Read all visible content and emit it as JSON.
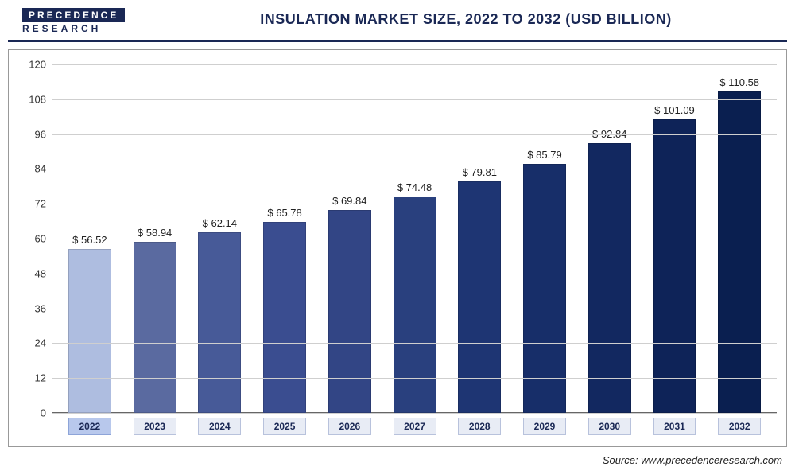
{
  "logo": {
    "top": "PRECEDENCE",
    "bottom": "RESEARCH"
  },
  "title": "INSULATION MARKET SIZE, 2022 TO 2032 (USD BILLION)",
  "source": "Source: www.precedenceresearch.com",
  "chart": {
    "type": "bar",
    "ylim": [
      0,
      120
    ],
    "ytick_step": 12,
    "yticks": [
      0,
      12,
      24,
      36,
      48,
      60,
      72,
      84,
      96,
      108,
      120
    ],
    "grid_color": "#cfcfcf",
    "background_color": "#ffffff",
    "title_fontsize": 18,
    "label_fontsize": 13,
    "value_prefix": "$ ",
    "bar_width": 0.66,
    "categories": [
      "2022",
      "2023",
      "2024",
      "2025",
      "2026",
      "2027",
      "2028",
      "2029",
      "2030",
      "2031",
      "2032"
    ],
    "values": [
      56.52,
      58.94,
      62.14,
      65.78,
      69.84,
      74.48,
      79.81,
      85.79,
      92.84,
      101.09,
      110.58
    ],
    "bar_colors": [
      "#aebde0",
      "#5a6aa0",
      "#475a98",
      "#3a4d90",
      "#324585",
      "#29407e",
      "#1e3573",
      "#172e69",
      "#122860",
      "#0e2358",
      "#0a1f50"
    ],
    "active_category_index": 0,
    "category_label_bg": "#e8ecf5",
    "category_label_border": "#b8c2dc",
    "active_category_bg": "#b8c8ec",
    "axis_text_color": "#1a2855"
  }
}
